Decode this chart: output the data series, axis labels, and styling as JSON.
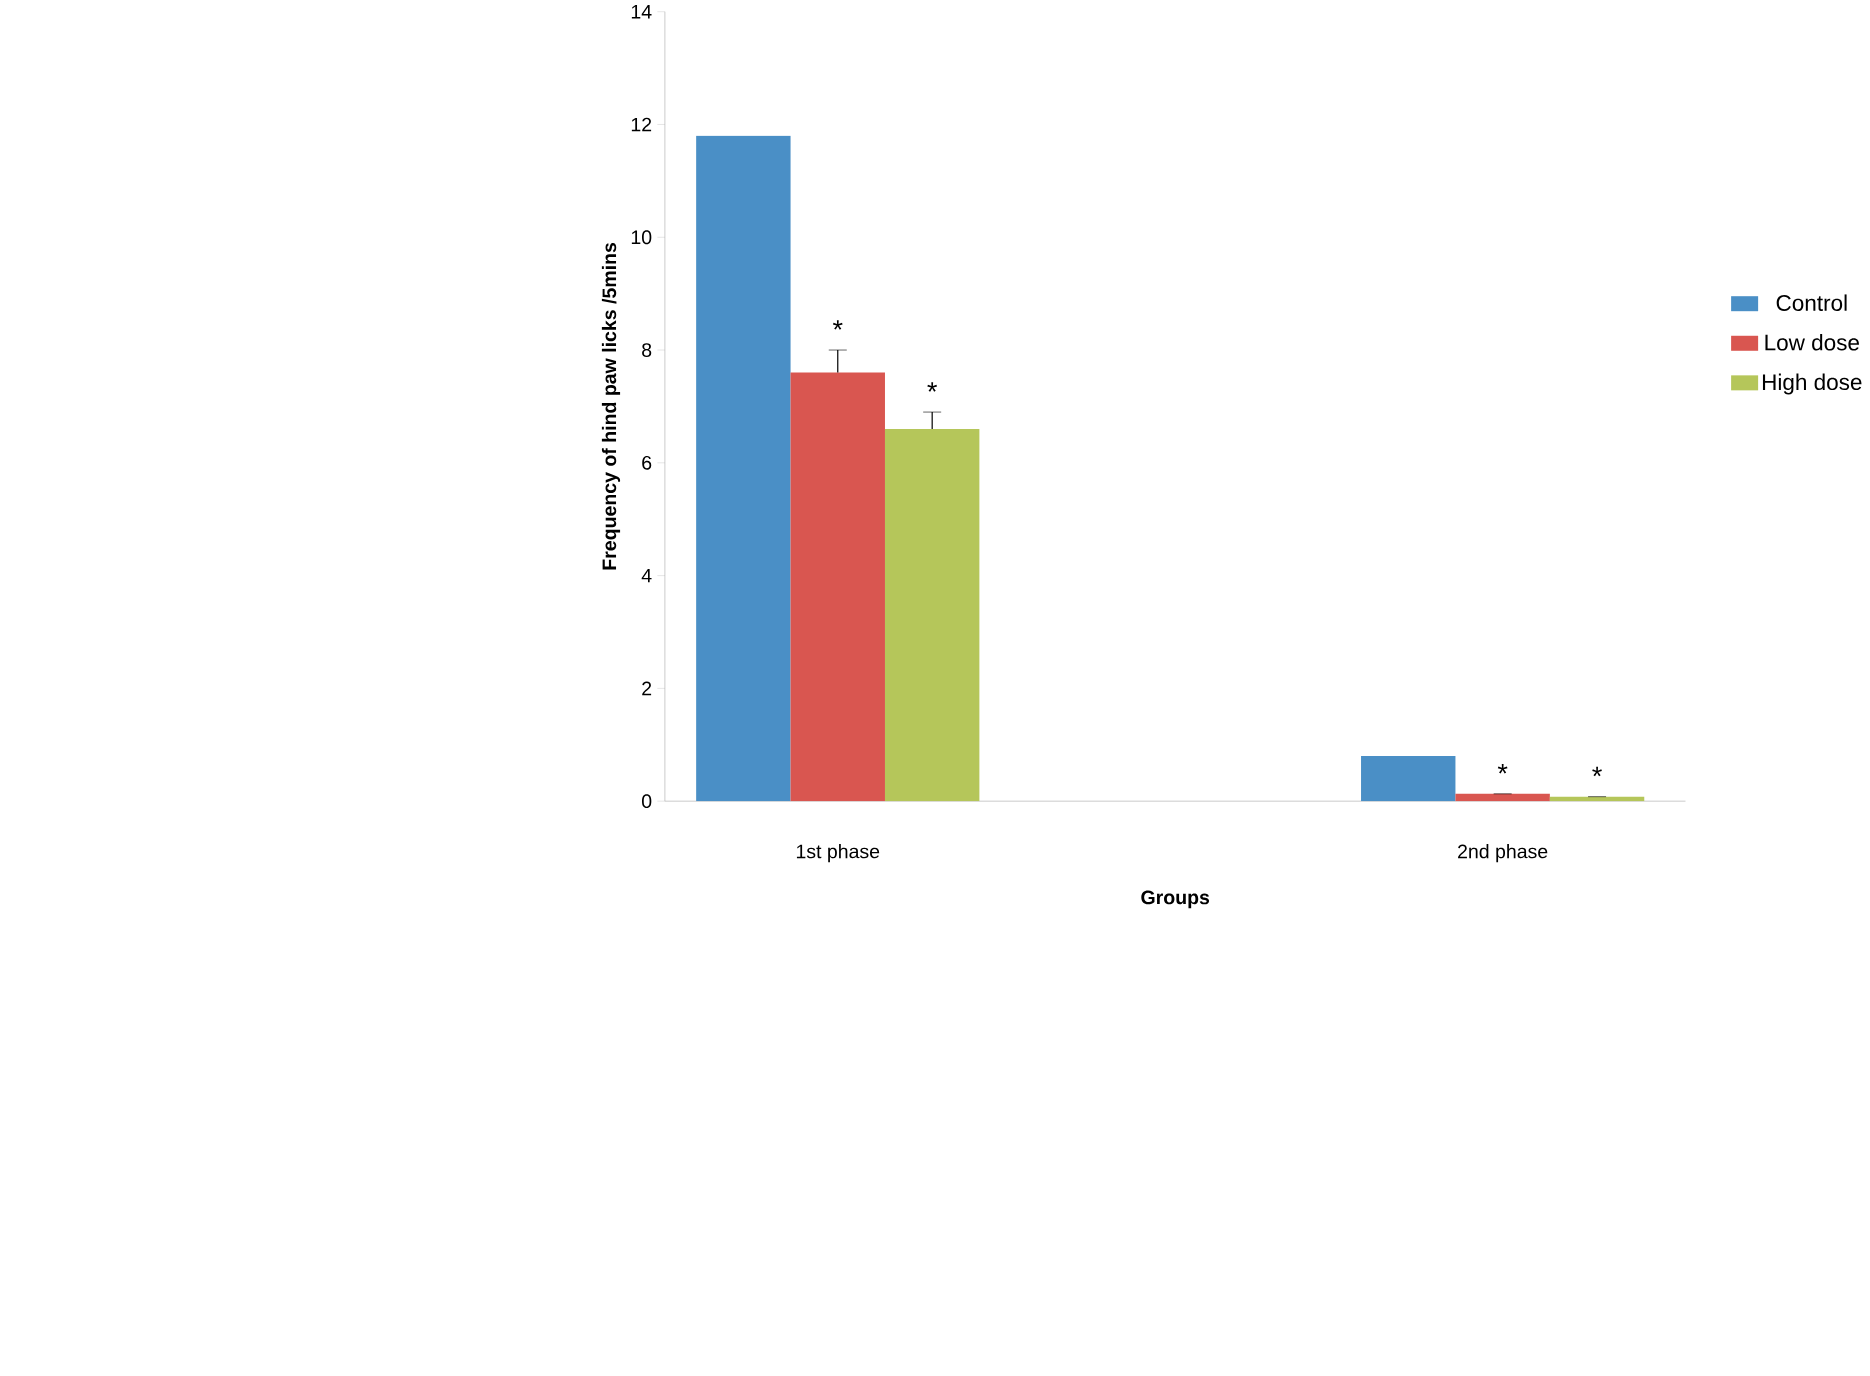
{
  "chart_data": {
    "type": "bar",
    "xlabel": "Groups",
    "ylabel": "Frequency of hind paw licks /5mins",
    "categories": [
      "1st phase",
      "2nd phase"
    ],
    "series": [
      {
        "name": "Control",
        "color": "#4a8fc6",
        "values": [
          11.8,
          0.8
        ]
      },
      {
        "name": "Low dose",
        "color": "#d95650",
        "values": [
          7.6,
          0.13
        ],
        "errors": [
          0.4,
          null
        ],
        "value_labels": [
          "*",
          "*"
        ]
      },
      {
        "name": "High dose",
        "color": "#b5c65a",
        "values": [
          6.6,
          0.08
        ],
        "errors": [
          0.3,
          null
        ],
        "value_labels": [
          "*",
          "*"
        ]
      }
    ],
    "ylim": [
      0,
      14
    ],
    "yticks": [
      0,
      2,
      4,
      6,
      8,
      10,
      12,
      14
    ],
    "legend": "right"
  }
}
